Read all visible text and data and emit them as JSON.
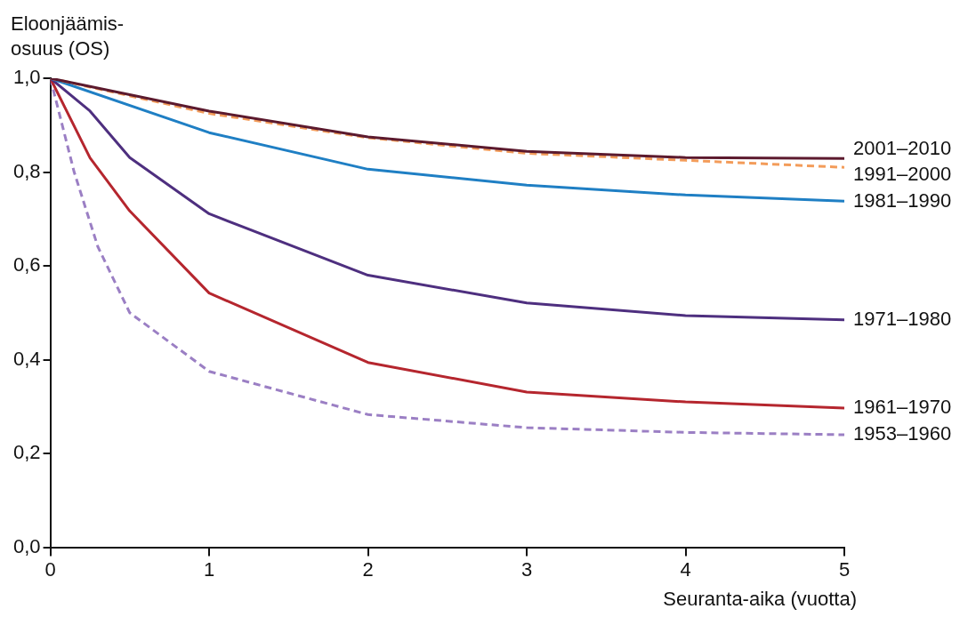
{
  "chart_data": {
    "type": "line",
    "ylabel": "Eloonjäämis-osuus (OS)",
    "xlabel": "Seuranta-aika (vuotta)",
    "xlim": [
      0,
      5
    ],
    "xticks": [
      0,
      1,
      2,
      3,
      4,
      5
    ],
    "ylim": [
      0,
      1
    ],
    "yticks": [
      {
        "value": 0,
        "label": "0,0"
      },
      {
        "value": 0.2,
        "label": "0,2"
      },
      {
        "value": 0.4,
        "label": "0,4"
      },
      {
        "value": 0.6,
        "label": "0,6"
      },
      {
        "value": 0.8,
        "label": "0,8"
      },
      {
        "value": 1,
        "label": "1,0"
      }
    ],
    "grid": false,
    "legend": false,
    "marker": "none",
    "series": [
      {
        "name": "2001–2010",
        "color": "#5c1a2e",
        "line_style": "solid",
        "x": [
          0,
          1,
          2,
          3,
          4,
          5
        ],
        "values": [
          1,
          0.93,
          0.875,
          0.844,
          0.831,
          0.829
        ]
      },
      {
        "name": "1991–2000",
        "color": "#f39c5a",
        "line_style": "dashed",
        "x": [
          0,
          1,
          2,
          3,
          4,
          5
        ],
        "values": [
          1,
          0.925,
          0.873,
          0.84,
          0.825,
          0.81
        ]
      },
      {
        "name": "1981–1990",
        "color": "#1f7fc4",
        "line_style": "solid",
        "x": [
          0,
          1,
          2,
          3,
          4,
          5
        ],
        "values": [
          1,
          0.884,
          0.806,
          0.772,
          0.751,
          0.738
        ]
      },
      {
        "name": "1971–1980",
        "color": "#4e2f7f",
        "line_style": "solid",
        "x": [
          0,
          0.25,
          0.5,
          1,
          2,
          3,
          4,
          5
        ],
        "values": [
          1,
          0.93,
          0.831,
          0.711,
          0.58,
          0.521,
          0.494,
          0.485
        ]
      },
      {
        "name": "1961–1970",
        "color": "#b5262e",
        "line_style": "solid",
        "x": [
          0,
          0.25,
          0.5,
          1,
          2,
          3,
          4,
          5
        ],
        "values": [
          1,
          0.83,
          0.717,
          0.542,
          0.394,
          0.331,
          0.31,
          0.297
        ]
      },
      {
        "name": "1953–1960",
        "color": "#9b7fc4",
        "line_style": "dashed",
        "x": [
          0,
          0.15,
          0.3,
          0.5,
          1,
          2,
          3,
          4,
          5
        ],
        "values": [
          1,
          0.8,
          0.64,
          0.5,
          0.375,
          0.283,
          0.255,
          0.245,
          0.24
        ]
      }
    ]
  }
}
